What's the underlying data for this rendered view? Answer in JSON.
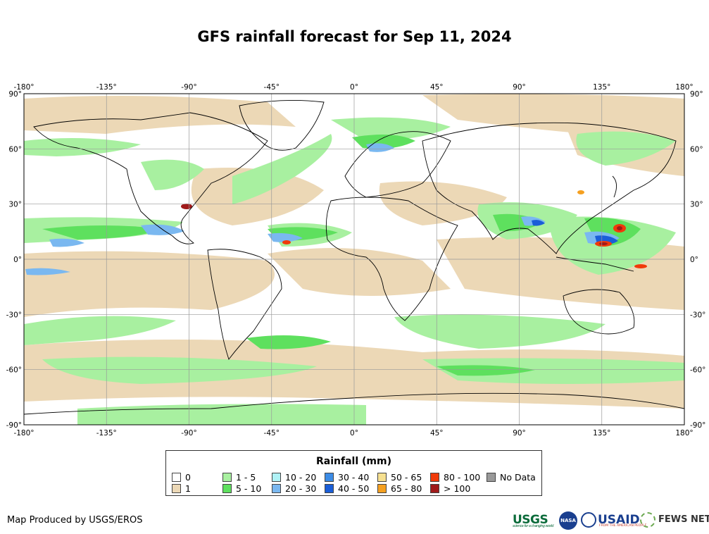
{
  "title": "GFS rainfall forecast for Sep 11, 2024",
  "map": {
    "lon_ticks": [
      "-180°",
      "-135°",
      "-90°",
      "-45°",
      "0°",
      "45°",
      "90°",
      "135°",
      "180°"
    ],
    "lat_ticks": [
      "90°",
      "60°",
      "30°",
      "0°",
      "-30°",
      "-60°",
      "-90°"
    ],
    "lon_range": [
      -180,
      180
    ],
    "lat_range": [
      -90,
      90
    ],
    "grid": true,
    "projection": "equirectangular"
  },
  "legend": {
    "title": "Rainfall (mm)",
    "items": [
      {
        "label": "0",
        "color": "#ffffff"
      },
      {
        "label": "1",
        "color": "#ecd8b6"
      },
      {
        "label": "1 - 5",
        "color": "#a8f0a0"
      },
      {
        "label": "5 - 10",
        "color": "#5ee05e"
      },
      {
        "label": "10 - 20",
        "color": "#b0f2f6"
      },
      {
        "label": "20 - 30",
        "color": "#7ab8f0"
      },
      {
        "label": "30 - 40",
        "color": "#3c8ce6"
      },
      {
        "label": "40 - 50",
        "color": "#1a5ed8"
      },
      {
        "label": "50 - 65",
        "color": "#f6e090"
      },
      {
        "label": "65 - 80",
        "color": "#f5a020"
      },
      {
        "label": "80 - 100",
        "color": "#f03a0a"
      },
      {
        "label": "> 100",
        "color": "#a01a1a"
      },
      {
        "label": "No Data",
        "color": "#999999"
      }
    ]
  },
  "footer": {
    "credit": "Map Produced by USGS/EROS",
    "logos": {
      "usgs": "USGS",
      "usgs_tagline": "science for a changing world",
      "nasa": "NASA",
      "usaid": "USAID",
      "usaid_tagline": "FROM THE AMERICAN PEOPLE",
      "fews": "FEWS NET"
    }
  }
}
